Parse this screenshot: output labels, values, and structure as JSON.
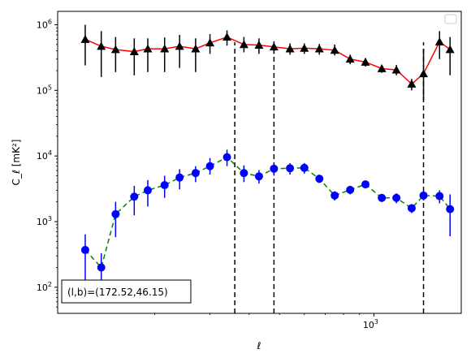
{
  "chart_data": {
    "type": "scatter",
    "title": "",
    "xlabel": "ℓ",
    "ylabel": "C_ℓ [mK²]",
    "xscale": "log",
    "yscale": "log",
    "xlim": [
      98,
      1900
    ],
    "ylim": [
      40,
      1600000
    ],
    "grid": false,
    "legend": {
      "location": "upper right",
      "entries": []
    },
    "x_tick_labels": [
      {
        "value": 1000,
        "mantissa": "10",
        "exponent": "3"
      }
    ],
    "y_tick_labels": [
      {
        "value": 100,
        "mantissa": "10",
        "exponent": "2"
      },
      {
        "value": 1000,
        "mantissa": "10",
        "exponent": "3"
      },
      {
        "value": 10000,
        "mantissa": "10",
        "exponent": "4"
      },
      {
        "value": 100000,
        "mantissa": "10",
        "exponent": "5"
      },
      {
        "value": 1000000,
        "mantissa": "10",
        "exponent": "6"
      }
    ],
    "vertical_lines": [
      {
        "x": 360,
        "y_range": [
          40,
          540000
        ],
        "color": "#000000",
        "style": "dashed"
      },
      {
        "x": 480,
        "y_range": [
          40,
          500000
        ],
        "color": "#000000",
        "style": "dashed"
      },
      {
        "x": 1440,
        "y_range": [
          40,
          540000
        ],
        "color": "#000000",
        "style": "dashed"
      }
    ],
    "annotation": "(l,b)=(172.52,46.15)",
    "series": [
      {
        "marker": "triangle",
        "marker_color": "#000000",
        "line_color": "#ff0000",
        "line_style": "solid",
        "points": [
          {
            "x": 120,
            "y": 600000,
            "lo": 240000,
            "hi": 1000000
          },
          {
            "x": 135,
            "y": 470000,
            "lo": 160000,
            "hi": 800000
          },
          {
            "x": 150,
            "y": 420000,
            "lo": 190000,
            "hi": 650000
          },
          {
            "x": 172,
            "y": 390000,
            "lo": 170000,
            "hi": 620000
          },
          {
            "x": 190,
            "y": 430000,
            "lo": 190000,
            "hi": 620000
          },
          {
            "x": 215,
            "y": 430000,
            "lo": 190000,
            "hi": 640000
          },
          {
            "x": 240,
            "y": 470000,
            "lo": 220000,
            "hi": 700000
          },
          {
            "x": 270,
            "y": 430000,
            "lo": 190000,
            "hi": 620000
          },
          {
            "x": 300,
            "y": 530000,
            "lo": 360000,
            "hi": 720000
          },
          {
            "x": 340,
            "y": 650000,
            "lo": 480000,
            "hi": 820000
          },
          {
            "x": 385,
            "y": 500000,
            "lo": 380000,
            "hi": 650000
          },
          {
            "x": 430,
            "y": 490000,
            "lo": 360000,
            "hi": 620000
          },
          {
            "x": 480,
            "y": 460000,
            "lo": 360000,
            "hi": 560000
          },
          {
            "x": 540,
            "y": 430000,
            "lo": 350000,
            "hi": 520000
          },
          {
            "x": 600,
            "y": 440000,
            "lo": 360000,
            "hi": 520000
          },
          {
            "x": 670,
            "y": 430000,
            "lo": 350000,
            "hi": 510000
          },
          {
            "x": 750,
            "y": 410000,
            "lo": 340000,
            "hi": 500000
          },
          {
            "x": 840,
            "y": 300000,
            "lo": 250000,
            "hi": 350000
          },
          {
            "x": 940,
            "y": 270000,
            "lo": 230000,
            "hi": 310000
          },
          {
            "x": 1060,
            "y": 215000,
            "lo": 185000,
            "hi": 245000
          },
          {
            "x": 1180,
            "y": 205000,
            "lo": 170000,
            "hi": 245000
          },
          {
            "x": 1320,
            "y": 125000,
            "lo": 100000,
            "hi": 150000
          },
          {
            "x": 1440,
            "y": 180000,
            "lo": 70000,
            "hi": 430000
          },
          {
            "x": 1620,
            "y": 550000,
            "lo": 300000,
            "hi": 800000
          },
          {
            "x": 1750,
            "y": 420000,
            "lo": 170000,
            "hi": 650000
          }
        ]
      },
      {
        "marker": "circle",
        "marker_color": "#0000ff",
        "line_color": "#008000",
        "line_style": "dashed",
        "points": [
          {
            "x": 120,
            "y": 370,
            "lo": 100,
            "hi": 640
          },
          {
            "x": 135,
            "y": 200,
            "lo": 80,
            "hi": 330
          },
          {
            "x": 150,
            "y": 1300,
            "lo": 580,
            "hi": 2000
          },
          {
            "x": 172,
            "y": 2400,
            "lo": 1250,
            "hi": 3500
          },
          {
            "x": 190,
            "y": 3000,
            "lo": 1700,
            "hi": 4300
          },
          {
            "x": 215,
            "y": 3600,
            "lo": 2300,
            "hi": 5000
          },
          {
            "x": 240,
            "y": 4700,
            "lo": 3100,
            "hi": 6300
          },
          {
            "x": 270,
            "y": 5500,
            "lo": 4000,
            "hi": 7000
          },
          {
            "x": 300,
            "y": 7000,
            "lo": 5200,
            "hi": 9300
          },
          {
            "x": 340,
            "y": 9600,
            "lo": 7000,
            "hi": 12500
          },
          {
            "x": 385,
            "y": 5500,
            "lo": 4000,
            "hi": 7200
          },
          {
            "x": 430,
            "y": 4900,
            "lo": 3800,
            "hi": 6100
          },
          {
            "x": 480,
            "y": 6400,
            "lo": 5000,
            "hi": 7800
          },
          {
            "x": 540,
            "y": 6500,
            "lo": 5200,
            "hi": 7800
          },
          {
            "x": 600,
            "y": 6600,
            "lo": 5400,
            "hi": 7800
          },
          {
            "x": 670,
            "y": 4500,
            "lo": 3900,
            "hi": 5200
          },
          {
            "x": 750,
            "y": 2500,
            "lo": 2100,
            "hi": 2900
          },
          {
            "x": 840,
            "y": 3050,
            "lo": 2600,
            "hi": 3500
          },
          {
            "x": 940,
            "y": 3700,
            "lo": 3200,
            "hi": 4200
          },
          {
            "x": 1060,
            "y": 2300,
            "lo": 2000,
            "hi": 2600
          },
          {
            "x": 1180,
            "y": 2300,
            "lo": 1900,
            "hi": 2700
          },
          {
            "x": 1320,
            "y": 1600,
            "lo": 1350,
            "hi": 1850
          },
          {
            "x": 1440,
            "y": 2500,
            "lo": 2100,
            "hi": 2900
          },
          {
            "x": 1620,
            "y": 2450,
            "lo": 1900,
            "hi": 3000
          },
          {
            "x": 1750,
            "y": 1550,
            "lo": 600,
            "hi": 2600
          }
        ]
      }
    ]
  }
}
